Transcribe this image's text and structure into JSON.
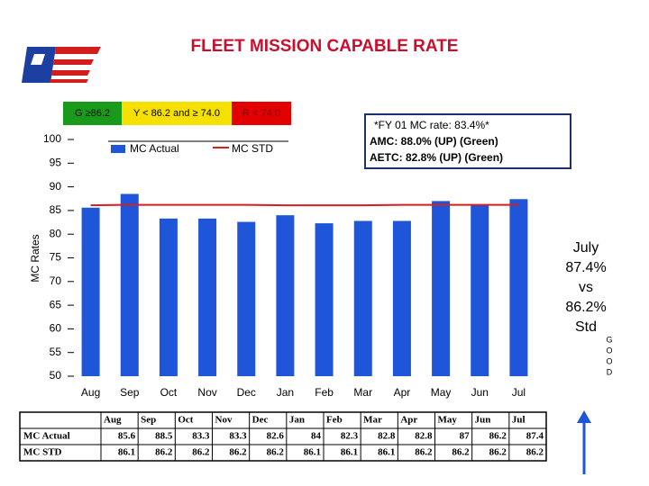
{
  "chart_data": {
    "type": "bar",
    "title": "FLEET MISSION CAPABLE RATE",
    "y_label": "MC Rates",
    "categories": [
      "Aug",
      "Sep",
      "Oct",
      "Nov",
      "Dec",
      "Jan",
      "Feb",
      "Mar",
      "Apr",
      "May",
      "Jun",
      "Jul"
    ],
    "series": [
      {
        "name": "MC Actual",
        "type": "bar",
        "color": "#1f55d8",
        "values": [
          85.6,
          88.5,
          83.3,
          83.3,
          82.6,
          84.0,
          82.3,
          82.8,
          82.8,
          87.0,
          86.2,
          87.4
        ]
      },
      {
        "name": "MC STD",
        "type": "line",
        "color": "#d42020",
        "values": [
          86.1,
          86.2,
          86.2,
          86.2,
          86.2,
          86.1,
          86.1,
          86.1,
          86.2,
          86.2,
          86.2,
          86.2
        ]
      }
    ],
    "ylim": [
      50,
      100
    ],
    "yticks": [
      50,
      55,
      60,
      65,
      70,
      75,
      80,
      85,
      90,
      95,
      100
    ]
  },
  "status_bands": [
    {
      "label": "G ≥86.2",
      "color": "#1a9a1a"
    },
    {
      "label": "Y < 86.2  and ≥ 74.0",
      "color": "#f5e000"
    },
    {
      "label": "R < 74.0",
      "color": "#e30000"
    }
  ],
  "note": [
    "*FY 01 MC rate:  83.4%*",
    "AMC:  88.0%   (UP)   (Green)",
    "AETC: 82.8%   (UP)    (Green)"
  ],
  "callout": [
    "July",
    "87.4%",
    "vs",
    "86.2%",
    "Std"
  ],
  "callout_tag": [
    "G",
    "O",
    "O",
    "D"
  ]
}
